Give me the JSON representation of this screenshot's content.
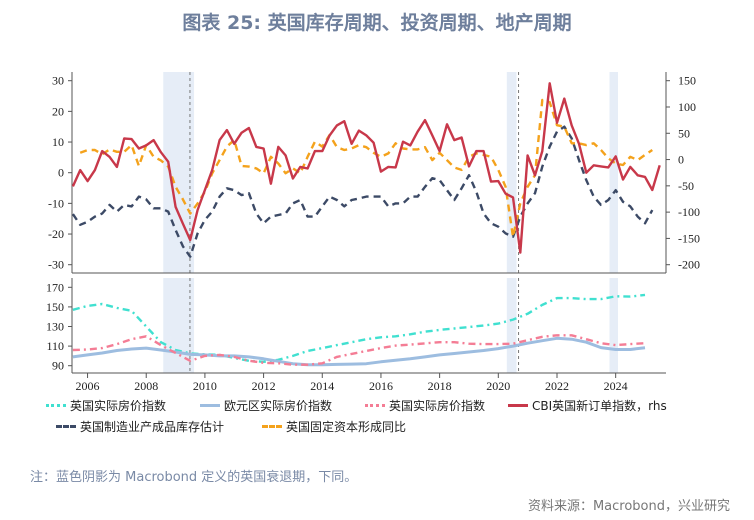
{
  "title": "图表 25: 英国库存周期、投资周期、地产周期",
  "note": "注：蓝色阴影为 Macrobond 定义的英国衰退期，下同。",
  "source": "资料来源：Macrobond，兴业研究",
  "chart_data": [
    {
      "type": "line",
      "panel": "top",
      "grid": false,
      "ylim_left": [
        -30,
        30
      ],
      "yticks_left": [
        30,
        20,
        10,
        0,
        -10,
        -20,
        -30
      ],
      "ylim_right": [
        -200,
        150
      ],
      "yticks_right": [
        150,
        100,
        50,
        0,
        -50,
        -100,
        -150,
        -200
      ],
      "xlim": [
        2005.47,
        2025.92
      ],
      "recessions": [
        [
          2008.58,
          2009.63
        ],
        [
          2020.29,
          2020.62
        ],
        [
          2023.79,
          2024.08
        ]
      ],
      "recession_markers": [
        2009.49,
        2020.69
      ],
      "series": [
        {
          "name": "CBI英国新订单指数，rhs",
          "axis": "right",
          "color": "#c8384a",
          "style": "solid",
          "x_start": 2005.5,
          "x_step": 0.25,
          "values": [
            -51,
            -20,
            -41,
            -20,
            16,
            5,
            -14,
            40,
            39,
            21,
            27,
            37,
            14,
            -4,
            -90,
            -122,
            -153,
            -96,
            -58,
            -20,
            37,
            56,
            30,
            51,
            60,
            24,
            21,
            -46,
            24,
            8,
            -36,
            -14,
            -17,
            16,
            16,
            46,
            65,
            73,
            30,
            55,
            46,
            32,
            -23,
            -14,
            -15,
            34,
            27,
            53,
            75,
            46,
            16,
            67,
            37,
            42,
            -13,
            16,
            16,
            -42,
            -41,
            -65,
            -72,
            -177,
            8,
            -30,
            16,
            145,
            70,
            116,
            65,
            30,
            -25,
            -11,
            -13,
            -15,
            6,
            -38,
            -14,
            -30,
            -33,
            -58,
            -11
          ]
        },
        {
          "name": "英国制造业产成品库存估计",
          "axis": "left",
          "color": "#3c4a66",
          "style": "dash",
          "x_start": 2005.5,
          "x_step": 0.25,
          "values": [
            -13.5,
            -17,
            -16,
            -14.3,
            -13.3,
            -10.5,
            -12.7,
            -10.5,
            -11,
            -7.8,
            -8.7,
            -11.6,
            -11.6,
            -12.7,
            -18.7,
            -24,
            -27.4,
            -19.8,
            -15.4,
            -12.7,
            -7.8,
            -5.1,
            -5.7,
            -7.3,
            -6.7,
            -13.3,
            -16.5,
            -14.3,
            -13.8,
            -13.3,
            -10,
            -8.9,
            -14.3,
            -14.3,
            -11,
            -7.8,
            -8.9,
            -11,
            -8.9,
            -8.4,
            -7.8,
            -7.8,
            -7.8,
            -11,
            -10,
            -10,
            -7.8,
            -7.8,
            -4.6,
            -1.8,
            -2.4,
            -5.7,
            -8.9,
            -5.1,
            -0.8,
            -6.2,
            -13.3,
            -16.5,
            -17.6,
            -19.8,
            -20.9,
            -14.3,
            -10,
            -6.7,
            2,
            8.5,
            13.4,
            15,
            11.2,
            4.1,
            -2.4,
            -7.8,
            -10.5,
            -8.9,
            -5.7,
            -9.5,
            -11,
            -14.3,
            -16.5,
            -12.2
          ]
        },
        {
          "name": "英国固定资本形成同比",
          "axis": "left",
          "color": "#f4a21c",
          "style": "dash",
          "x_start": 2005.75,
          "x_step": 0.25,
          "values": [
            6.5,
            7.4,
            7.4,
            6,
            7.6,
            6.8,
            6.8,
            9,
            2.2,
            9,
            5.2,
            4,
            2,
            -4.6,
            -8.7,
            -13.3,
            -10,
            -6.2,
            -0.2,
            4.1,
            8.5,
            10.7,
            2.2,
            2,
            1.4,
            -0.2,
            5.2,
            3,
            -0.2,
            1.4,
            -0.2,
            5.2,
            10.1,
            8.5,
            12.3,
            8.3,
            7.4,
            7.9,
            9,
            8.3,
            6.5,
            5.2,
            6.3,
            9.6,
            7.9,
            7.6,
            7.6,
            8.3,
            4.1,
            6.5,
            4.1,
            1.7,
            0.9,
            5.2,
            6.3,
            5.8,
            5.2,
            0.9,
            -4.6,
            -20.9,
            -10,
            -4.6,
            -0.8,
            23.7,
            23,
            15.5,
            15,
            9.6,
            9.6,
            9,
            9.6,
            7.4,
            4.7,
            3,
            2.5,
            5.2,
            4.1,
            5.8,
            7.4
          ]
        }
      ]
    },
    {
      "type": "line",
      "panel": "bottom",
      "grid": false,
      "ylim": [
        85,
        175
      ],
      "yticks": [
        170,
        150,
        130,
        110,
        90
      ],
      "xlim": [
        2005.47,
        2025.92
      ],
      "xticks": [
        "2006",
        "2008",
        "2010",
        "2012",
        "2014",
        "2016",
        "2018",
        "2020",
        "2022",
        "2024"
      ],
      "recessions": [
        [
          2008.58,
          2009.63
        ],
        [
          2020.29,
          2020.62
        ],
        [
          2023.79,
          2024.08
        ]
      ],
      "recession_markers": [
        2009.49,
        2020.69
      ],
      "series": [
        {
          "name": "英国实际房价指数",
          "color": "#40e0d0",
          "style": "dashdot",
          "x_start": 2005.5,
          "x_step": 0.5,
          "values": [
            147,
            151,
            153,
            149,
            146,
            130,
            114,
            106,
            102.6,
            101.6,
            101,
            98,
            95,
            94,
            96,
            100,
            105,
            108,
            111,
            114,
            117,
            119,
            120,
            122,
            124.7,
            126.5,
            128,
            129.5,
            131,
            133,
            137,
            143,
            152,
            159,
            159,
            158,
            158,
            160.8,
            160.5,
            162.2
          ]
        },
        {
          "name": "欧元区实际房价指数",
          "color": "#9dbde0",
          "style": "solid",
          "x_start": 2005.5,
          "x_step": 0.5,
          "values": [
            99,
            101,
            103,
            105.5,
            107,
            108,
            106,
            104,
            101.5,
            101,
            100,
            100,
            99,
            97,
            94.5,
            92,
            91,
            91,
            91.3,
            91.6,
            92,
            94,
            95.5,
            97,
            99,
            101,
            102.5,
            104,
            105.5,
            107.5,
            110,
            113,
            115.5,
            118,
            117,
            114,
            108.5,
            106.5,
            106.5,
            108.4
          ]
        },
        {
          "name": "英国实际房价指数",
          "color": "#f47d95",
          "style": "dashdot",
          "x_start": 2005.5,
          "x_step": 0.5,
          "values": [
            106,
            106.5,
            108,
            112,
            117,
            120,
            111,
            103,
            95,
            100,
            101,
            99,
            95,
            93,
            92.5,
            91,
            91,
            92.5,
            99,
            102,
            105,
            108,
            110.5,
            111.5,
            112.8,
            114,
            114,
            112.5,
            112,
            112,
            112.5,
            116,
            119.5,
            121,
            121,
            117,
            113,
            111,
            112,
            113
          ]
        }
      ]
    }
  ],
  "legend": [
    {
      "label": "英国实际房价指数",
      "color": "#40e0d0",
      "style": "dashdot"
    },
    {
      "label": "欧元区实际房价指数",
      "color": "#9dbde0",
      "style": "solid"
    },
    {
      "label": "英国实际房价指数",
      "color": "#f47d95",
      "style": "dashdot"
    },
    {
      "label": "CBI英国新订单指数，rhs",
      "color": "#c8384a",
      "style": "solid"
    },
    {
      "label": "英国制造业产成品库存估计",
      "color": "#3c4a66",
      "style": "dash"
    },
    {
      "label": "英国固定资本形成同比",
      "color": "#f4a21c",
      "style": "dash"
    }
  ],
  "recession_color": "#e6edf7"
}
